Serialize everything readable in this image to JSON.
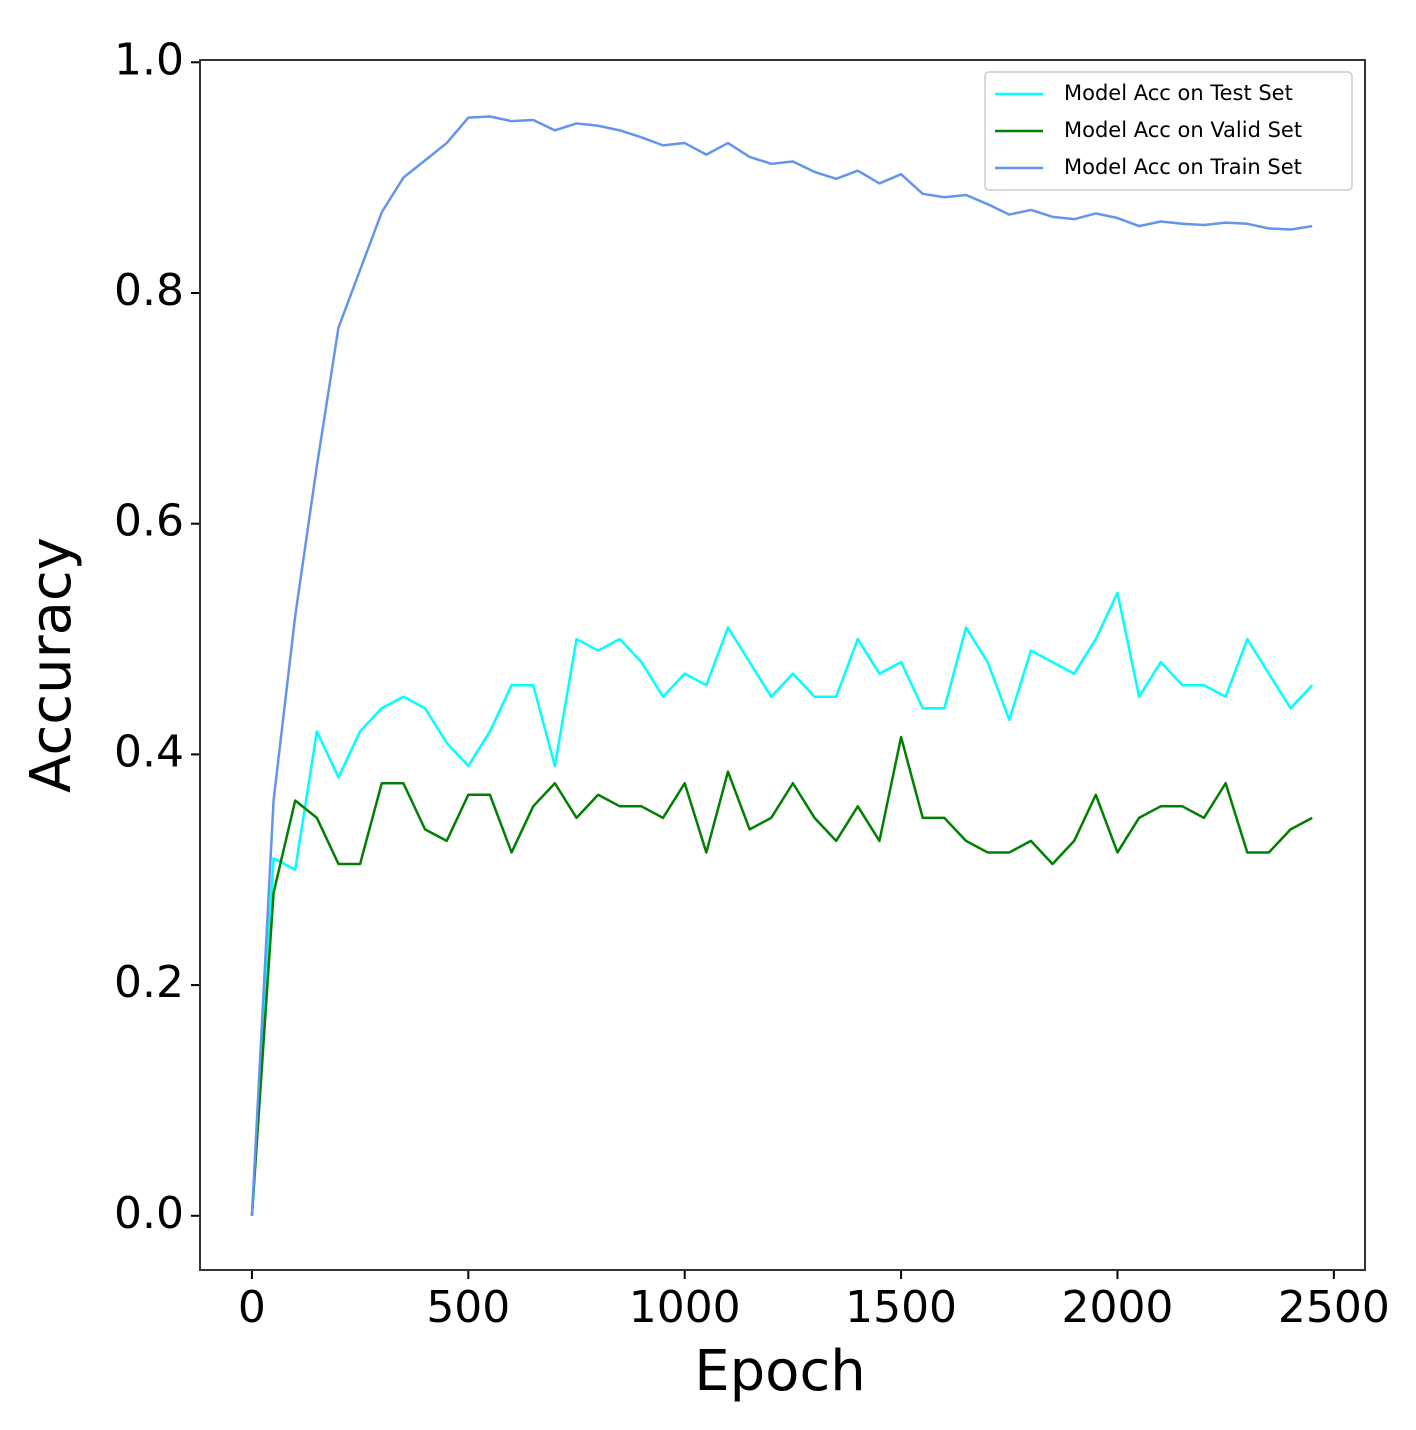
{
  "chart_data": {
    "type": "line",
    "xlabel": "Epoch",
    "ylabel": "Accuracy",
    "x": [
      0,
      50,
      100,
      150,
      200,
      250,
      300,
      350,
      400,
      450,
      500,
      550,
      600,
      650,
      700,
      750,
      800,
      850,
      900,
      950,
      1000,
      1050,
      1100,
      1150,
      1200,
      1250,
      1300,
      1350,
      1400,
      1450,
      1500,
      1550,
      1600,
      1650,
      1700,
      1750,
      1800,
      1850,
      1900,
      1950,
      2000,
      2050,
      2100,
      2150,
      2200,
      2250,
      2300,
      2350,
      2400,
      2450
    ],
    "series": [
      {
        "name": "Model Acc on Test Set",
        "color": "#00ffff",
        "values": [
          0,
          0.31,
          0.3,
          0.42,
          0.38,
          0.42,
          0.44,
          0.45,
          0.44,
          0.41,
          0.39,
          0.42,
          0.46,
          0.46,
          0.39,
          0.5,
          0.49,
          0.5,
          0.48,
          0.45,
          0.47,
          0.46,
          0.51,
          0.48,
          0.45,
          0.47,
          0.45,
          0.45,
          0.5,
          0.47,
          0.48,
          0.44,
          0.44,
          0.51,
          0.48,
          0.43,
          0.49,
          0.48,
          0.47,
          0.5,
          0.54,
          0.45,
          0.48,
          0.46,
          0.46,
          0.45,
          0.5,
          0.47,
          0.44,
          0.46
        ]
      },
      {
        "name": "Model Acc on Valid Set",
        "color": "#008000",
        "values": [
          0,
          0.28,
          0.36,
          0.345,
          0.305,
          0.305,
          0.375,
          0.375,
          0.335,
          0.325,
          0.365,
          0.365,
          0.315,
          0.355,
          0.375,
          0.345,
          0.365,
          0.355,
          0.355,
          0.345,
          0.375,
          0.315,
          0.385,
          0.335,
          0.345,
          0.375,
          0.345,
          0.325,
          0.355,
          0.325,
          0.415,
          0.345,
          0.345,
          0.325,
          0.315,
          0.315,
          0.325,
          0.305,
          0.325,
          0.365,
          0.315,
          0.345,
          0.355,
          0.355,
          0.345,
          0.375,
          0.315,
          0.315,
          0.335,
          0.345
        ]
      },
      {
        "name": "Model Acc on Train Set",
        "color": "#6495ed",
        "values": [
          0,
          0.36,
          0.52,
          0.65,
          0.77,
          0.82,
          0.87,
          0.9,
          0.915,
          0.93,
          0.952,
          0.953,
          0.949,
          0.95,
          0.941,
          0.947,
          0.945,
          0.941,
          0.935,
          0.928,
          0.93,
          0.92,
          0.93,
          0.918,
          0.912,
          0.914,
          0.905,
          0.899,
          0.906,
          0.895,
          0.903,
          0.886,
          0.883,
          0.885,
          0.877,
          0.868,
          0.872,
          0.866,
          0.864,
          0.869,
          0.865,
          0.858,
          0.862,
          0.86,
          0.859,
          0.861,
          0.86,
          0.856,
          0.855,
          0.858
        ]
      }
    ],
    "xlim": [
      -120,
      2572
    ],
    "ylim": [
      -0.047,
      1.002
    ],
    "xticks": [
      0,
      500,
      1000,
      1500,
      2000,
      2500
    ],
    "yticks": [
      {
        "value": 0,
        "label": "0.0"
      },
      0.2,
      0.4,
      0.6,
      0.8,
      {
        "value": 1,
        "label": "1.0"
      }
    ],
    "legend": "upper right",
    "grid": false
  }
}
